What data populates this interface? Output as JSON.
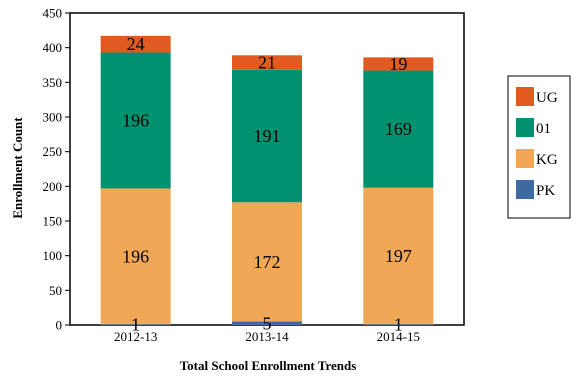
{
  "chart_data": {
    "type": "bar",
    "stacked": true,
    "categories": [
      "2012-13",
      "2013-14",
      "2014-15"
    ],
    "series": [
      {
        "name": "PK",
        "color": "#3f6aa1",
        "values": [
          1,
          5,
          1
        ]
      },
      {
        "name": "KG",
        "color": "#f0a857",
        "values": [
          196,
          172,
          197
        ]
      },
      {
        "name": "01",
        "color": "#00916e",
        "values": [
          196,
          191,
          169
        ]
      },
      {
        "name": "UG",
        "color": "#e05a22",
        "values": [
          24,
          21,
          19
        ]
      }
    ],
    "legend_order": [
      "UG",
      "01",
      "KG",
      "PK"
    ],
    "xlabel": "Total School Enrollment Trends",
    "ylabel": "Enrollment Count",
    "ylim": [
      0,
      450
    ],
    "yticks": [
      0,
      50,
      100,
      150,
      200,
      250,
      300,
      350,
      400,
      450
    ],
    "grid": false,
    "legend_position": "right"
  }
}
